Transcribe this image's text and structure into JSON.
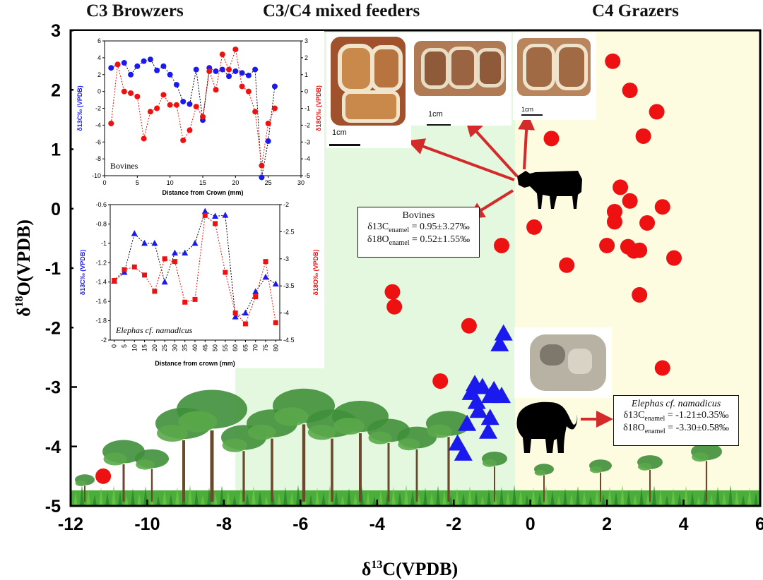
{
  "zones": {
    "c3_label": "C3 Browzers",
    "mixed_label": "C3/C4 mixed feeders",
    "c4_label": "C4 Grazers",
    "c3_color": "#ffffff",
    "mixed_color": "#e3f8df",
    "c4_color": "#fdfbe0"
  },
  "chart_data": [
    {
      "type": "scatter",
      "xlabel": "δ13C(VPDB)",
      "ylabel": "δ18O(VPDB)",
      "xlim": [
        -12,
        6
      ],
      "ylim": [
        -5,
        3
      ],
      "xticks": [
        -12,
        -10,
        -8,
        -6,
        -4,
        -2,
        0,
        2,
        4,
        6
      ],
      "yticks": [
        -5,
        -4,
        -3,
        -2,
        -1,
        0,
        1,
        2,
        3
      ],
      "zone_boundaries_x": [
        -7.7,
        -0.4
      ],
      "series": [
        {
          "marker": "circle",
          "color": "#ee1111",
          "points": [
            [
              -11.15,
              -4.5
            ],
            [
              -3.6,
              -1.4
            ],
            [
              -3.55,
              -1.65
            ],
            [
              -2.35,
              -2.9
            ],
            [
              -1.6,
              -1.97
            ],
            [
              -0.75,
              -0.62
            ],
            [
              0.1,
              -0.31
            ],
            [
              0.55,
              1.18
            ],
            [
              0.95,
              -0.95
            ],
            [
              2.15,
              2.48
            ],
            [
              2.6,
              1.99
            ],
            [
              3.3,
              1.63
            ],
            [
              2.95,
              1.22
            ],
            [
              2.35,
              0.36
            ],
            [
              2.6,
              0.13
            ],
            [
              3.45,
              0.03
            ],
            [
              2.2,
              -0.05
            ],
            [
              2.2,
              -0.22
            ],
            [
              3.05,
              -0.24
            ],
            [
              2.0,
              -0.62
            ],
            [
              2.55,
              -0.64
            ],
            [
              2.7,
              -0.71
            ],
            [
              2.85,
              -0.7
            ],
            [
              3.75,
              -0.83
            ],
            [
              2.85,
              -1.45
            ],
            [
              3.45,
              -2.68
            ]
          ]
        },
        {
          "marker": "triangle",
          "color": "#1a1aee",
          "points": [
            [
              -0.7,
              -2.1
            ],
            [
              -0.8,
              -2.28
            ],
            [
              -1.45,
              -2.95
            ],
            [
              -1.25,
              -3.0
            ],
            [
              -0.95,
              -3.05
            ],
            [
              -0.75,
              -3.15
            ],
            [
              -1.55,
              -3.1
            ],
            [
              -1.05,
              -3.15
            ],
            [
              -1.4,
              -3.25
            ],
            [
              -1.35,
              -3.4
            ],
            [
              -1.65,
              -3.62
            ],
            [
              -1.05,
              -3.52
            ],
            [
              -1.1,
              -3.75
            ],
            [
              -1.9,
              -3.95
            ],
            [
              -1.75,
              -4.12
            ]
          ]
        }
      ],
      "summary_boxes": {
        "bovines": {
          "title": "Bovines",
          "c_label": "δ13C",
          "c_sub": "enamel",
          "c_value": " = 0.95±3.27‰",
          "o_label": "δ18O",
          "o_sub": "enamel",
          "o_value": " = 0.52±1.55‰"
        },
        "elephas": {
          "title": "Elephas cf. namadicus",
          "c_label": "δ13C",
          "c_sub": "enamel",
          "c_value": " = -1.21±0.35‰",
          "o_label": "δ18O",
          "o_sub": "enamel",
          "o_value": " = -3.30±0.58‰"
        }
      }
    },
    {
      "type": "line",
      "inset": "Bovines",
      "xlabel": "Distance from Crown (mm)",
      "ylabel_left": "δ13C‰ (VPDB)",
      "ylabel_right": "δ18O‰ (VPDB)",
      "xlim": [
        0,
        30
      ],
      "ylim_left": [
        -10,
        6
      ],
      "ylim_right": [
        -5,
        3
      ],
      "xticks": [
        0,
        5,
        10,
        15,
        20,
        25,
        30
      ],
      "yticks_left": [
        -10,
        -8,
        -6,
        -4,
        -2,
        0,
        2,
        4,
        6
      ],
      "yticks_right": [
        -5,
        -4,
        -3,
        -2,
        -1,
        0,
        1,
        2,
        3
      ],
      "series": [
        {
          "name": "δ13C",
          "axis": "left",
          "color": "#1a1aee",
          "marker": "circle",
          "x": [
            1,
            2,
            3,
            4,
            5,
            6,
            7,
            8,
            9,
            10,
            11,
            12,
            13,
            14,
            15,
            16,
            17,
            18,
            19,
            20,
            21,
            22,
            23,
            24,
            25,
            26
          ],
          "y": [
            2.8,
            3.2,
            3.4,
            2.0,
            3.0,
            3.6,
            3.8,
            2.5,
            3.0,
            2.0,
            0.8,
            -1.2,
            -1.5,
            2.6,
            -3.4,
            2.8,
            2.4,
            2.6,
            1.8,
            2.4,
            2.2,
            1.9,
            2.6,
            -10.2,
            -5.9,
            0.6
          ]
        },
        {
          "name": "δ18O",
          "axis": "right",
          "color": "#ee1111",
          "marker": "circle",
          "x": [
            1,
            2,
            3,
            4,
            5,
            6,
            7,
            8,
            9,
            10,
            11,
            12,
            13,
            14,
            15,
            16,
            17,
            18,
            19,
            20,
            21,
            22,
            23,
            24,
            25,
            26
          ],
          "y": [
            -1.9,
            1.6,
            0.0,
            -0.1,
            -0.3,
            -2.8,
            -1.2,
            -1.0,
            -0.2,
            -0.8,
            -0.8,
            -2.9,
            -2.3,
            -0.9,
            -1.5,
            1.2,
            0.1,
            2.2,
            1.3,
            2.5,
            0.3,
            0.0,
            -1.2,
            -4.4,
            -1.9,
            -1.0
          ]
        }
      ]
    },
    {
      "type": "line",
      "inset": "Elephas cf. namadicus",
      "xlabel": "Distance from crown (mm)",
      "ylabel_left": "δ13C‰ (VPDB)",
      "ylabel_right": "δ18O‰ (VPDB)",
      "xlim": [
        -2,
        82
      ],
      "ylim_left": [
        -2.0,
        -0.6
      ],
      "ylim_right": [
        -4.5,
        -2.0
      ],
      "xticks": [
        0,
        5,
        10,
        15,
        20,
        25,
        30,
        35,
        40,
        45,
        50,
        55,
        60,
        65,
        70,
        75,
        80
      ],
      "yticks_left": [
        -2.0,
        -1.8,
        -1.6,
        -1.4,
        -1.2,
        -1.0,
        -0.8,
        -0.6
      ],
      "yticks_right": [
        -4.5,
        -4.0,
        -3.5,
        -3.0,
        -2.5,
        -2.0
      ],
      "series": [
        {
          "name": "δ13C",
          "axis": "left",
          "color": "#1a1aee",
          "marker": "triangle",
          "x": [
            0,
            5,
            10,
            15,
            20,
            25,
            30,
            35,
            40,
            45,
            50,
            55,
            60,
            65,
            70,
            75,
            80
          ],
          "y": [
            -1.39,
            -1.3,
            -0.9,
            -1.0,
            -1.0,
            -1.4,
            -1.1,
            -1.1,
            -1.0,
            -0.67,
            -0.72,
            -0.71,
            -1.76,
            -1.72,
            -1.5,
            -1.35,
            -1.42
          ]
        },
        {
          "name": "δ18O",
          "axis": "right",
          "color": "#ee1111",
          "marker": "square",
          "x": [
            0,
            5,
            10,
            15,
            20,
            25,
            30,
            35,
            40,
            45,
            50,
            55,
            60,
            65,
            70,
            75,
            80
          ],
          "y": [
            -3.4,
            -3.2,
            -3.15,
            -3.3,
            -3.6,
            -3.0,
            -3.05,
            -3.8,
            -3.75,
            -2.2,
            -2.35,
            -3.25,
            -4.0,
            -4.2,
            -3.7,
            -3.05,
            -4.18
          ]
        }
      ]
    }
  ]
}
